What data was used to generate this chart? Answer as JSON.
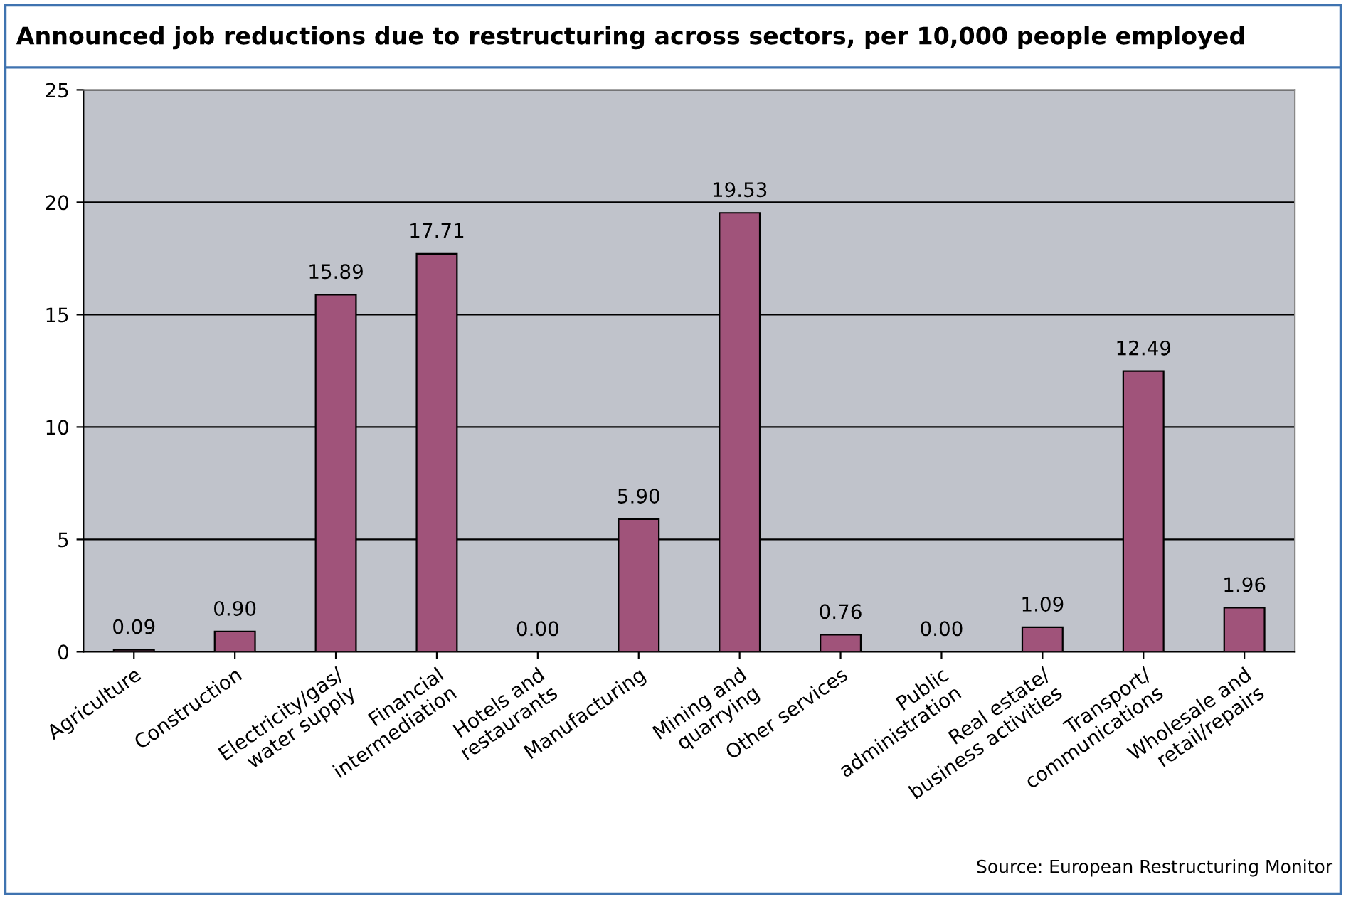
{
  "chart_data": {
    "type": "bar",
    "title": "Announced job reductions due to restructuring across sectors, per 10,000 people employed",
    "categories": [
      "Agriculture",
      "Construction",
      "Electricity/gas/\nwater supply",
      "Financial\nintermediation",
      "Hotels and\nrestaurants",
      "Manufacturing",
      "Mining and\nquarrying",
      "Other services",
      "Public\nadministration",
      "Real estate/\nbusiness activities",
      "Transport/\ncommunications",
      "Wholesale and\nretail/repairs"
    ],
    "values": [
      0.09,
      0.9,
      15.89,
      17.71,
      0.0,
      5.9,
      19.53,
      0.76,
      0.0,
      1.09,
      12.49,
      1.96
    ],
    "value_labels": [
      "0.09",
      "0.90",
      "15.89",
      "17.71",
      "0.00",
      "5.90",
      "19.53",
      "0.76",
      "0.00",
      "1.09",
      "12.49",
      "1.96"
    ],
    "color": "#a0537a",
    "ylim": [
      0,
      25
    ],
    "yticks": [
      0,
      5,
      10,
      15,
      20,
      25
    ],
    "grid": "y",
    "annotations": [
      "Source: European Restructuring Monitor"
    ]
  }
}
